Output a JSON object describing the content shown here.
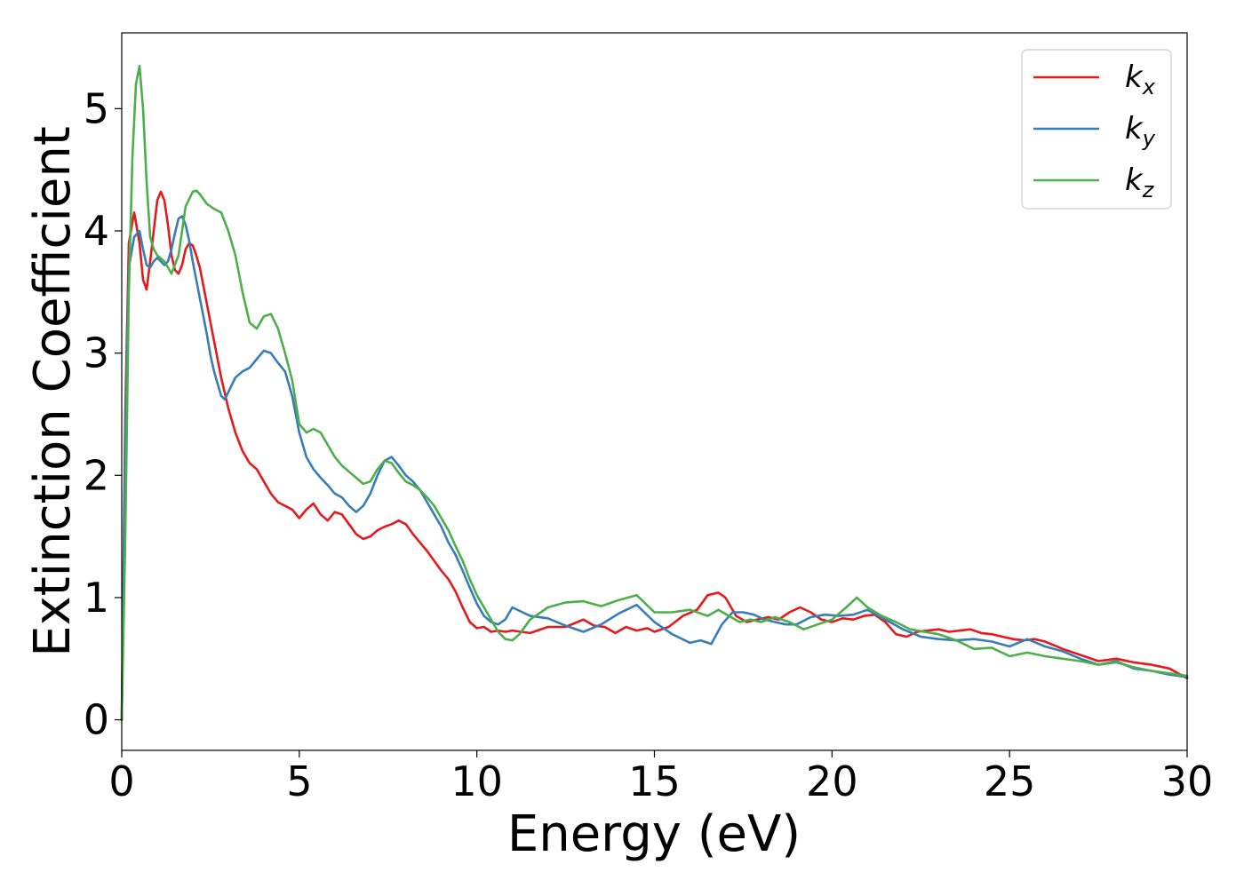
{
  "chart_data": {
    "type": "line",
    "title": "",
    "xlabel": "Energy (eV)",
    "ylabel": "Extinction Coefficient",
    "xlim": [
      0,
      30
    ],
    "ylim": [
      -0.25,
      5.62
    ],
    "xticks": [
      0,
      5,
      10,
      15,
      20,
      25,
      30
    ],
    "yticks": [
      0,
      1,
      2,
      3,
      4,
      5
    ],
    "grid": false,
    "legend_position": "top-right",
    "series": [
      {
        "name": "k_x",
        "label_base": "k",
        "label_sub": "x",
        "color": "#e41a1c",
        "x": [
          0,
          0.1,
          0.2,
          0.35,
          0.5,
          0.6,
          0.7,
          0.8,
          0.9,
          1.0,
          1.1,
          1.2,
          1.3,
          1.4,
          1.5,
          1.6,
          1.7,
          1.8,
          1.9,
          2.0,
          2.1,
          2.2,
          2.3,
          2.4,
          2.6,
          2.8,
          3.0,
          3.2,
          3.4,
          3.6,
          3.8,
          4.0,
          4.2,
          4.4,
          4.6,
          4.8,
          5.0,
          5.2,
          5.4,
          5.6,
          5.8,
          6.0,
          6.2,
          6.4,
          6.6,
          6.8,
          7.0,
          7.2,
          7.4,
          7.6,
          7.8,
          8.0,
          8.2,
          8.4,
          8.6,
          8.8,
          9.0,
          9.2,
          9.4,
          9.6,
          9.8,
          10.0,
          10.2,
          10.4,
          10.6,
          10.8,
          11.0,
          11.5,
          12.0,
          12.5,
          13.0,
          13.3,
          13.6,
          13.9,
          14.2,
          14.5,
          14.8,
          15.0,
          15.4,
          15.8,
          16.2,
          16.5,
          16.8,
          17.0,
          17.3,
          17.6,
          17.9,
          18.2,
          18.5,
          18.8,
          19.1,
          19.4,
          19.7,
          20.0,
          20.3,
          20.6,
          20.9,
          21.2,
          21.5,
          21.8,
          22.1,
          22.4,
          22.7,
          23.0,
          23.3,
          23.6,
          23.9,
          24.2,
          24.5,
          24.8,
          25.1,
          25.4,
          25.7,
          26.0,
          26.5,
          27.0,
          27.5,
          28.0,
          28.5,
          29.0,
          29.5,
          30.0
        ],
        "y": [
          0,
          2.5,
          3.9,
          4.15,
          3.9,
          3.6,
          3.52,
          3.75,
          4.0,
          4.25,
          4.32,
          4.25,
          4.05,
          3.8,
          3.68,
          3.65,
          3.72,
          3.85,
          3.9,
          3.88,
          3.8,
          3.7,
          3.55,
          3.4,
          3.1,
          2.8,
          2.55,
          2.35,
          2.2,
          2.1,
          2.05,
          1.95,
          1.85,
          1.78,
          1.75,
          1.72,
          1.65,
          1.72,
          1.77,
          1.68,
          1.63,
          1.7,
          1.68,
          1.6,
          1.52,
          1.48,
          1.5,
          1.55,
          1.58,
          1.6,
          1.63,
          1.6,
          1.52,
          1.45,
          1.38,
          1.3,
          1.22,
          1.15,
          1.05,
          0.92,
          0.8,
          0.75,
          0.76,
          0.72,
          0.73,
          0.72,
          0.73,
          0.71,
          0.76,
          0.76,
          0.82,
          0.77,
          0.76,
          0.71,
          0.76,
          0.73,
          0.75,
          0.72,
          0.76,
          0.85,
          0.9,
          1.02,
          1.04,
          1.0,
          0.85,
          0.8,
          0.82,
          0.84,
          0.82,
          0.88,
          0.92,
          0.88,
          0.82,
          0.8,
          0.83,
          0.82,
          0.85,
          0.86,
          0.8,
          0.7,
          0.68,
          0.72,
          0.73,
          0.74,
          0.72,
          0.73,
          0.74,
          0.71,
          0.7,
          0.68,
          0.66,
          0.65,
          0.66,
          0.64,
          0.58,
          0.53,
          0.48,
          0.5,
          0.47,
          0.45,
          0.42,
          0.34
        ]
      },
      {
        "name": "k_y",
        "label_base": "k",
        "label_sub": "y",
        "color": "#377eb8",
        "x": [
          0,
          0.1,
          0.2,
          0.35,
          0.5,
          0.6,
          0.7,
          0.8,
          0.9,
          1.0,
          1.1,
          1.2,
          1.3,
          1.4,
          1.5,
          1.6,
          1.7,
          1.8,
          1.9,
          2.0,
          2.1,
          2.2,
          2.3,
          2.4,
          2.5,
          2.6,
          2.7,
          2.8,
          2.9,
          3.0,
          3.2,
          3.4,
          3.6,
          3.8,
          4.0,
          4.2,
          4.4,
          4.6,
          4.8,
          5.0,
          5.2,
          5.4,
          5.6,
          5.8,
          6.0,
          6.2,
          6.4,
          6.6,
          6.8,
          7.0,
          7.2,
          7.4,
          7.6,
          7.8,
          8.0,
          8.2,
          8.4,
          8.6,
          8.8,
          9.0,
          9.2,
          9.4,
          9.6,
          9.8,
          10.0,
          10.2,
          10.4,
          10.6,
          10.8,
          11.0,
          11.5,
          12.0,
          12.5,
          13.0,
          13.5,
          14.0,
          14.5,
          15.0,
          15.5,
          16.0,
          16.3,
          16.6,
          16.9,
          17.2,
          17.5,
          17.8,
          18.1,
          18.4,
          18.7,
          19.0,
          19.4,
          19.8,
          20.2,
          20.6,
          21.0,
          21.5,
          22.0,
          22.5,
          23.0,
          23.5,
          24.0,
          24.5,
          25.0,
          25.5,
          26.0,
          26.5,
          27.0,
          27.5,
          28.0,
          28.5,
          29.0,
          29.5,
          30.0
        ],
        "y": [
          0,
          2.3,
          3.7,
          3.95,
          4.0,
          3.85,
          3.72,
          3.7,
          3.75,
          3.78,
          3.75,
          3.72,
          3.75,
          3.85,
          3.98,
          4.1,
          4.12,
          4.05,
          3.92,
          3.75,
          3.6,
          3.45,
          3.3,
          3.15,
          2.98,
          2.85,
          2.75,
          2.65,
          2.62,
          2.68,
          2.8,
          2.85,
          2.88,
          2.95,
          3.02,
          3.0,
          2.92,
          2.85,
          2.65,
          2.35,
          2.15,
          2.05,
          1.98,
          1.92,
          1.85,
          1.82,
          1.75,
          1.7,
          1.75,
          1.85,
          2.0,
          2.12,
          2.15,
          2.08,
          2.0,
          1.95,
          1.88,
          1.78,
          1.68,
          1.58,
          1.45,
          1.35,
          1.22,
          1.08,
          0.95,
          0.85,
          0.8,
          0.78,
          0.82,
          0.92,
          0.85,
          0.83,
          0.77,
          0.72,
          0.78,
          0.87,
          0.94,
          0.8,
          0.7,
          0.63,
          0.65,
          0.62,
          0.78,
          0.88,
          0.88,
          0.86,
          0.82,
          0.8,
          0.78,
          0.78,
          0.84,
          0.86,
          0.85,
          0.86,
          0.9,
          0.82,
          0.74,
          0.68,
          0.66,
          0.65,
          0.66,
          0.64,
          0.6,
          0.66,
          0.6,
          0.56,
          0.5,
          0.45,
          0.48,
          0.42,
          0.4,
          0.37,
          0.35
        ]
      },
      {
        "name": "k_z",
        "label_base": "k",
        "label_sub": "z",
        "color": "#4daf4a",
        "x": [
          0,
          0.1,
          0.2,
          0.3,
          0.4,
          0.5,
          0.6,
          0.7,
          0.8,
          0.9,
          1.0,
          1.2,
          1.4,
          1.6,
          1.8,
          2.0,
          2.1,
          2.2,
          2.4,
          2.6,
          2.8,
          3.0,
          3.2,
          3.4,
          3.6,
          3.8,
          4.0,
          4.2,
          4.4,
          4.6,
          4.8,
          5.0,
          5.2,
          5.4,
          5.6,
          5.8,
          6.0,
          6.2,
          6.4,
          6.6,
          6.8,
          7.0,
          7.2,
          7.4,
          7.6,
          7.8,
          8.0,
          8.2,
          8.4,
          8.6,
          8.8,
          9.0,
          9.2,
          9.4,
          9.6,
          9.8,
          10.0,
          10.2,
          10.4,
          10.6,
          10.8,
          11.0,
          11.2,
          11.5,
          12.0,
          12.5,
          13.0,
          13.5,
          14.0,
          14.5,
          15.0,
          15.5,
          16.0,
          16.5,
          16.8,
          17.1,
          17.4,
          17.7,
          18.0,
          18.4,
          18.8,
          19.2,
          19.6,
          20.0,
          20.4,
          20.7,
          21.0,
          21.4,
          21.8,
          22.2,
          22.6,
          23.0,
          23.5,
          24.0,
          24.5,
          25.0,
          25.5,
          26.0,
          26.5,
          27.0,
          27.5,
          28.0,
          28.5,
          29.0,
          29.5,
          30.0
        ],
        "y": [
          0,
          1.5,
          3.5,
          4.6,
          5.2,
          5.35,
          5.0,
          4.4,
          3.95,
          3.85,
          3.8,
          3.75,
          3.65,
          3.8,
          4.2,
          4.32,
          4.33,
          4.3,
          4.22,
          4.18,
          4.15,
          4.0,
          3.8,
          3.5,
          3.25,
          3.2,
          3.3,
          3.32,
          3.2,
          3.0,
          2.78,
          2.42,
          2.35,
          2.38,
          2.35,
          2.25,
          2.15,
          2.08,
          2.03,
          1.98,
          1.93,
          1.95,
          2.05,
          2.12,
          2.1,
          2.02,
          1.95,
          1.92,
          1.88,
          1.82,
          1.75,
          1.65,
          1.55,
          1.42,
          1.3,
          1.15,
          1.02,
          0.92,
          0.82,
          0.72,
          0.66,
          0.65,
          0.7,
          0.82,
          0.92,
          0.96,
          0.97,
          0.93,
          0.98,
          1.02,
          0.88,
          0.88,
          0.9,
          0.85,
          0.9,
          0.85,
          0.8,
          0.82,
          0.8,
          0.84,
          0.8,
          0.74,
          0.78,
          0.82,
          0.92,
          1.0,
          0.92,
          0.85,
          0.8,
          0.74,
          0.72,
          0.7,
          0.65,
          0.58,
          0.59,
          0.52,
          0.55,
          0.52,
          0.5,
          0.48,
          0.45,
          0.47,
          0.43,
          0.4,
          0.38,
          0.36
        ]
      }
    ]
  }
}
